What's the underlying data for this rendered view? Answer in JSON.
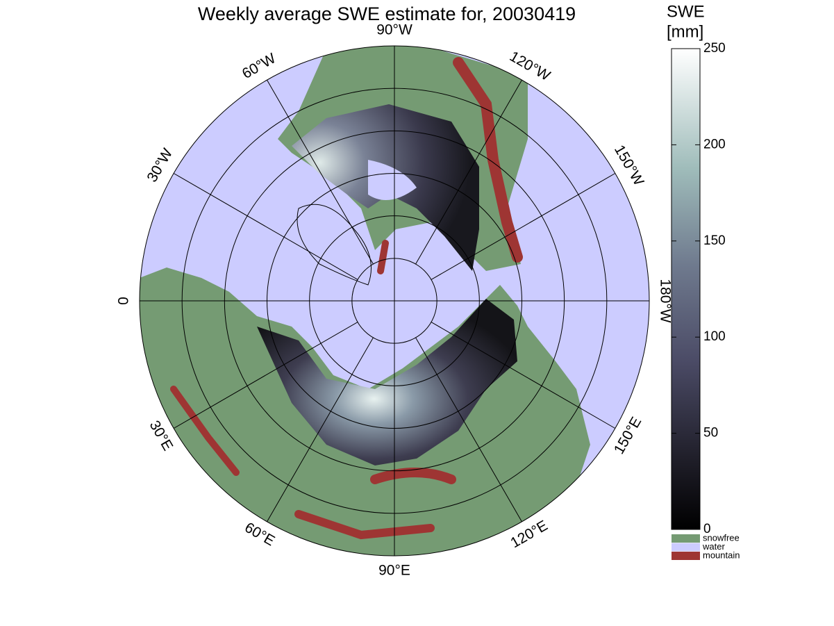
{
  "map": {
    "title": "Weekly average SWE estimate for, 20030419",
    "longitude_labels": [
      "90°W",
      "120°W",
      "150°W",
      "180°W",
      "150°E",
      "120°E",
      "90°E",
      "60°E",
      "30°E",
      "0",
      "30°W",
      "60°W"
    ],
    "colorbar": {
      "label": [
        "SWE",
        "[mm]"
      ],
      "lim": [
        0,
        250
      ],
      "ticks": [
        0,
        50,
        100,
        150,
        200,
        250
      ]
    },
    "legend": [
      {
        "name": "snowfree",
        "color": "#759b73"
      },
      {
        "name": "water",
        "color": "#ccccff"
      },
      {
        "name": "mountain",
        "color": "#9e3533"
      }
    ]
  }
}
